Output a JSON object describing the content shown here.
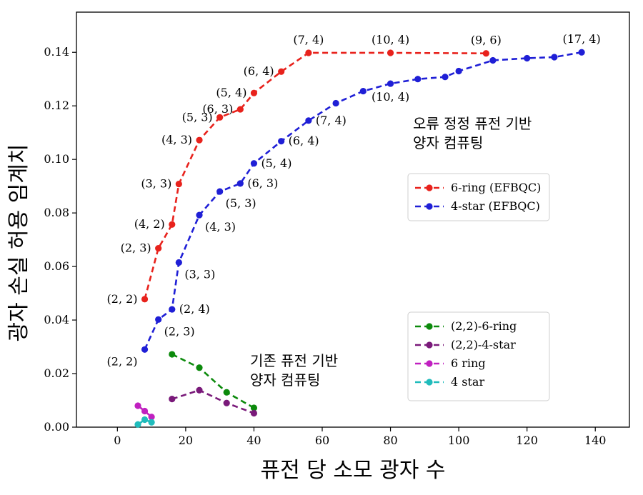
{
  "chart_data": {
    "type": "line",
    "xlabel": "퓨전 당 소모 광자 수",
    "ylabel": "광자 손실 허용 임계치",
    "xlim": [
      -12,
      150
    ],
    "ylim": [
      0,
      0.155
    ],
    "x_ticks": [
      0,
      20,
      40,
      60,
      80,
      100,
      120,
      140
    ],
    "y_ticks": [
      0.0,
      0.02,
      0.04,
      0.06,
      0.08,
      0.1,
      0.12,
      0.14
    ],
    "grid": false,
    "region_labels": [
      {
        "name": "efbqc-region",
        "lines": [
          "오류 정정 퓨전 기반",
          "양자 컴퓨팅"
        ]
      },
      {
        "name": "conventional-region",
        "lines": [
          "기존 퓨전 기반",
          "양자 컴퓨팅"
        ]
      }
    ],
    "legends": [
      {
        "name": "legend-efbqc",
        "placement": "center-right",
        "entries": [
          0,
          1
        ]
      },
      {
        "name": "legend-conventional",
        "placement": "lower-right",
        "entries": [
          2,
          3,
          4,
          5
        ]
      }
    ],
    "series": [
      {
        "name": "6-ring (EFBQC)",
        "color": "#e8221c",
        "points": [
          {
            "x": 8,
            "y": 0.0478,
            "label": "(2, 2)",
            "pos": "left"
          },
          {
            "x": 12,
            "y": 0.0668,
            "label": "(2, 3)",
            "pos": "left"
          },
          {
            "x": 16,
            "y": 0.0757,
            "label": "(4, 2)",
            "pos": "left"
          },
          {
            "x": 18,
            "y": 0.0908,
            "label": "(3, 3)",
            "pos": "left"
          },
          {
            "x": 24,
            "y": 0.1072,
            "label": "(4, 3)",
            "pos": "left"
          },
          {
            "x": 30,
            "y": 0.1157,
            "label": "(5, 3)",
            "pos": "left"
          },
          {
            "x": 36,
            "y": 0.1187,
            "label": "(6, 3)",
            "pos": "left"
          },
          {
            "x": 40,
            "y": 0.1248,
            "label": "(5, 4)",
            "pos": "left"
          },
          {
            "x": 48,
            "y": 0.1328,
            "label": "(6, 4)",
            "pos": "left"
          },
          {
            "x": 56,
            "y": 0.1398,
            "label": "(7, 4)",
            "pos": "above"
          },
          {
            "x": 80,
            "y": 0.1398,
            "label": "(10, 4)",
            "pos": "above"
          },
          {
            "x": 108,
            "y": 0.1396,
            "label": "(9, 6)",
            "pos": "above"
          }
        ]
      },
      {
        "name": "4-star (EFBQC)",
        "color": "#1f1fd6",
        "points": [
          {
            "x": 8,
            "y": 0.029,
            "label": "(2, 2)",
            "pos": "below-left"
          },
          {
            "x": 12,
            "y": 0.0402,
            "label": "(2, 3)",
            "pos": "below-right"
          },
          {
            "x": 16,
            "y": 0.044,
            "label": "(2, 4)",
            "pos": "right"
          },
          {
            "x": 18,
            "y": 0.0615,
            "label": "(3, 3)",
            "pos": "below-right"
          },
          {
            "x": 24,
            "y": 0.0792,
            "label": "(4, 3)",
            "pos": "below-right"
          },
          {
            "x": 30,
            "y": 0.088,
            "label": "(5, 3)",
            "pos": "below-right"
          },
          {
            "x": 36,
            "y": 0.091,
            "label": "(6, 3)",
            "pos": "right"
          },
          {
            "x": 40,
            "y": 0.0985,
            "label": "(5, 4)",
            "pos": "right"
          },
          {
            "x": 48,
            "y": 0.1068,
            "label": "(6, 4)",
            "pos": "right"
          },
          {
            "x": 56,
            "y": 0.1145,
            "label": "(7, 4)",
            "pos": "right"
          },
          {
            "x": 64,
            "y": 0.121,
            "label": "",
            "pos": ""
          },
          {
            "x": 72,
            "y": 0.1255,
            "label": "",
            "pos": ""
          },
          {
            "x": 80,
            "y": 0.1283,
            "label": "(10, 4)",
            "pos": "below"
          },
          {
            "x": 88,
            "y": 0.13,
            "label": "",
            "pos": ""
          },
          {
            "x": 96,
            "y": 0.1308,
            "label": "",
            "pos": ""
          },
          {
            "x": 100,
            "y": 0.133,
            "label": "",
            "pos": ""
          },
          {
            "x": 110,
            "y": 0.137,
            "label": "",
            "pos": ""
          },
          {
            "x": 120,
            "y": 0.1378,
            "label": "",
            "pos": ""
          },
          {
            "x": 128,
            "y": 0.1382,
            "label": "",
            "pos": ""
          },
          {
            "x": 136,
            "y": 0.14,
            "label": "(17, 4)",
            "pos": "above"
          }
        ]
      },
      {
        "name": "(2,2)-6-ring",
        "color": "#0c8a0c",
        "points": [
          {
            "x": 16,
            "y": 0.0272
          },
          {
            "x": 24,
            "y": 0.0222
          },
          {
            "x": 32,
            "y": 0.013
          },
          {
            "x": 40,
            "y": 0.0072
          }
        ]
      },
      {
        "name": "(2,2)-4-star",
        "color": "#7a1a7a",
        "points": [
          {
            "x": 16,
            "y": 0.0105
          },
          {
            "x": 24,
            "y": 0.0138
          },
          {
            "x": 32,
            "y": 0.009
          },
          {
            "x": 40,
            "y": 0.0052
          }
        ]
      },
      {
        "name": "6 ring",
        "color": "#c020c0",
        "points": [
          {
            "x": 6,
            "y": 0.008
          },
          {
            "x": 8,
            "y": 0.006
          },
          {
            "x": 10,
            "y": 0.0038
          }
        ]
      },
      {
        "name": "4 star",
        "color": "#20bcbc",
        "points": [
          {
            "x": 6,
            "y": 0.001
          },
          {
            "x": 8,
            "y": 0.0028
          },
          {
            "x": 10,
            "y": 0.0018
          }
        ]
      }
    ]
  }
}
